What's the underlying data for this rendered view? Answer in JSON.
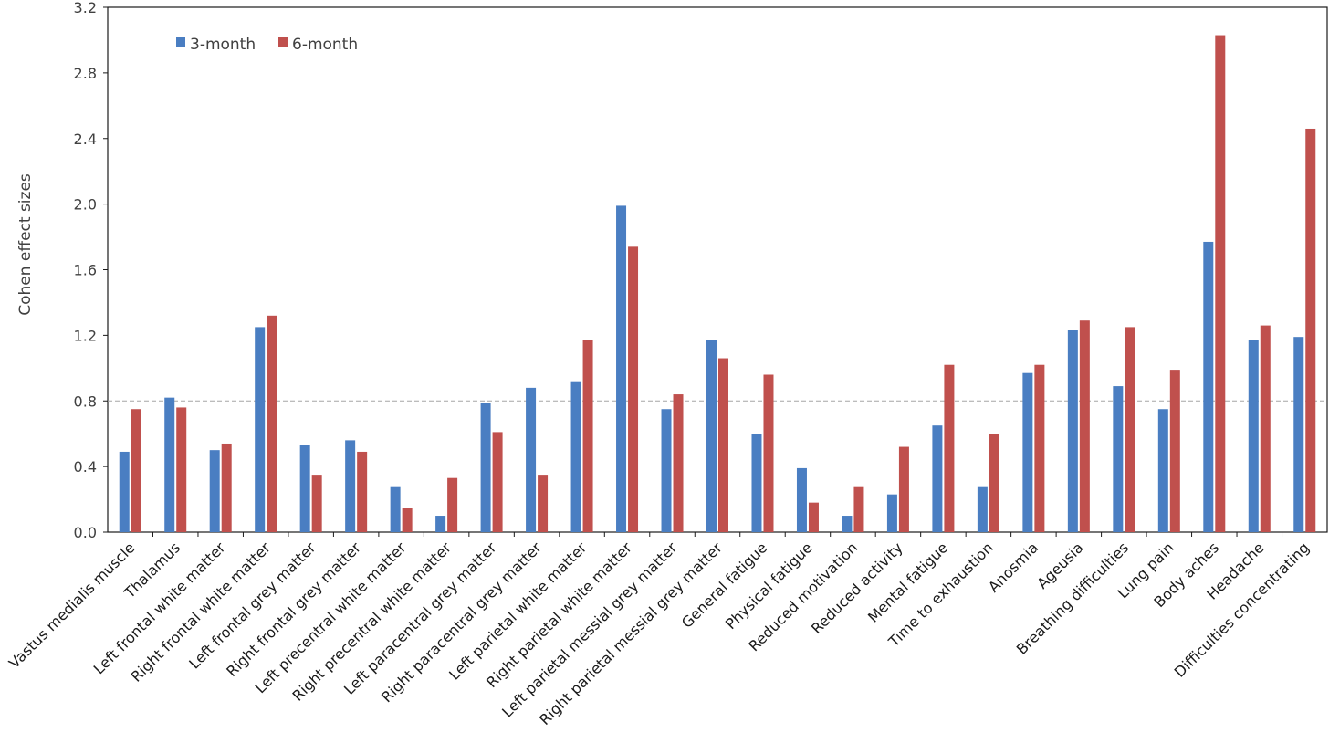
{
  "chart_data": {
    "type": "bar",
    "ylabel": "Cohen effect sizes",
    "ylim": [
      0,
      3.2
    ],
    "yticks": [
      "0.0",
      "0.4",
      "0.8",
      "1.2",
      "1.6",
      "2.0",
      "2.4",
      "2.8",
      "3.2"
    ],
    "reference_line": 0.8,
    "legend_position": "top-left",
    "categories": [
      "Vastus medialis muscle",
      "Thalamus",
      "Left frontal white matter",
      "Right frontal white matter",
      "Left frontal grey matter",
      "Right frontal grey matter",
      "Left precentral white matter",
      "Right precentral white matter",
      "Left paracentral grey matter",
      "Right paracentral grey matter",
      "Left parietal white matter",
      "Right parietal white matter",
      "Left parietal messial grey matter",
      "Right parietal messial grey matter",
      "General fatigue",
      "Physical fatigue",
      "Reduced motivation",
      "Reduced activity",
      "Mental fatigue",
      "Time to exhaustion",
      "Anosmia",
      "Ageusia",
      "Breathing difficulties",
      "Lung pain",
      "Body aches",
      "Headache",
      "Difficulties concentrating"
    ],
    "series": [
      {
        "name": "3-month",
        "color": "#4A7EC2",
        "values": [
          0.49,
          0.82,
          0.5,
          1.25,
          0.53,
          0.56,
          0.28,
          0.1,
          0.79,
          0.88,
          0.92,
          1.99,
          0.75,
          1.17,
          0.6,
          0.39,
          0.1,
          0.23,
          0.65,
          0.28,
          0.97,
          1.23,
          0.89,
          0.75,
          1.77,
          1.17,
          1.19
        ]
      },
      {
        "name": "6-month",
        "color": "#C0504D",
        "values": [
          0.75,
          0.76,
          0.54,
          1.32,
          0.35,
          0.49,
          0.15,
          0.33,
          0.61,
          0.35,
          1.17,
          1.74,
          0.84,
          1.06,
          0.96,
          0.18,
          0.28,
          0.52,
          1.02,
          0.6,
          1.02,
          1.29,
          1.25,
          0.99,
          3.03,
          1.26,
          2.46
        ]
      }
    ]
  }
}
